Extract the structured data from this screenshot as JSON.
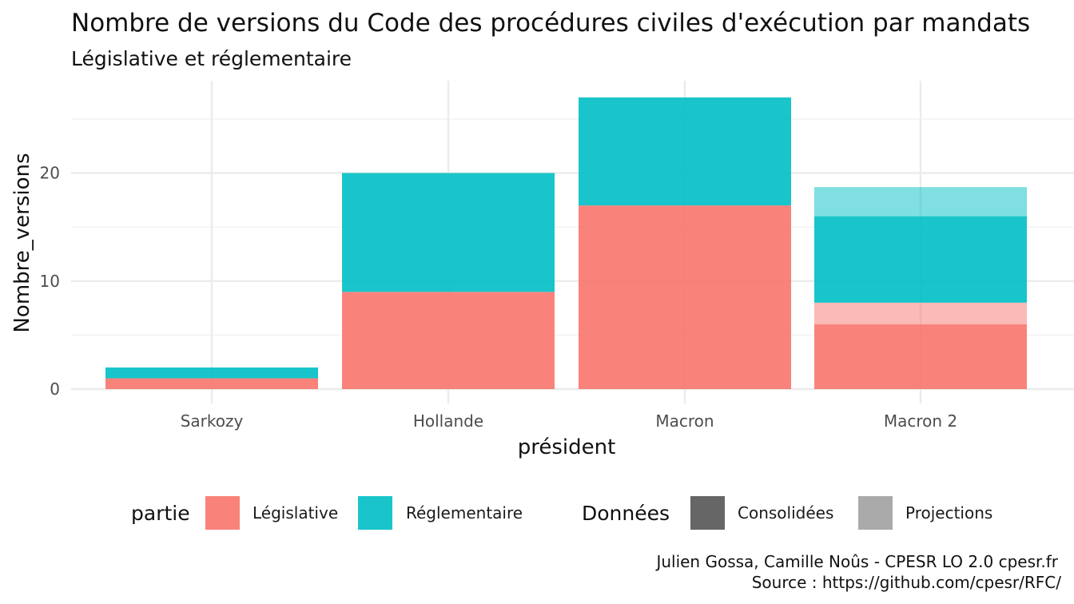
{
  "chart_data": {
    "type": "bar",
    "stacked": true,
    "title": "Nombre de versions du Code des procédures civiles d'exécution par mandats",
    "subtitle": "Législative et réglementaire",
    "xlabel": "président",
    "ylabel": "Nombre_versions",
    "categories": [
      "Sarkozy",
      "Hollande",
      "Macron",
      "Macron 2"
    ],
    "ylim": [
      0,
      28
    ],
    "yticks": [
      0,
      10,
      20
    ],
    "grid": true,
    "legend_position": "bottom",
    "segments": [
      {
        "category": "Sarkozy",
        "partie": "Législative",
        "donnees": "Consolidées",
        "value": 1
      },
      {
        "category": "Sarkozy",
        "partie": "Réglementaire",
        "donnees": "Consolidées",
        "value": 1
      },
      {
        "category": "Hollande",
        "partie": "Législative",
        "donnees": "Consolidées",
        "value": 9
      },
      {
        "category": "Hollande",
        "partie": "Réglementaire",
        "donnees": "Consolidées",
        "value": 11
      },
      {
        "category": "Macron",
        "partie": "Législative",
        "donnees": "Consolidées",
        "value": 17
      },
      {
        "category": "Macron",
        "partie": "Réglementaire",
        "donnees": "Consolidées",
        "value": 10
      },
      {
        "category": "Macron 2",
        "partie": "Législative",
        "donnees": "Consolidées",
        "value": 6
      },
      {
        "category": "Macron 2",
        "partie": "Législative",
        "donnees": "Projections",
        "value": 2
      },
      {
        "category": "Macron 2",
        "partie": "Réglementaire",
        "donnees": "Consolidées",
        "value": 8
      },
      {
        "category": "Macron 2",
        "partie": "Réglementaire",
        "donnees": "Projections",
        "value": 2.7
      }
    ],
    "colors": {
      "Législative": "#F8766D",
      "Réglementaire": "#00BFC4"
    },
    "opacity": {
      "Consolidées": 0.9,
      "Projections": 0.5
    },
    "legend": {
      "partie": {
        "title": "partie",
        "items": [
          {
            "label": "Législative",
            "color": "#F8766D"
          },
          {
            "label": "Réglementaire",
            "color": "#00BFC4"
          }
        ]
      },
      "donnees": {
        "title": "Données",
        "items": [
          {
            "label": "Consolidées",
            "color": "#666666"
          },
          {
            "label": "Projections",
            "color": "#aaaaaa"
          }
        ]
      }
    },
    "caption": [
      "Julien Gossa, Camille Noûs - CPESR LO 2.0 cpesr.fr",
      "Source : https://github.com/cpesr/RFC/"
    ]
  }
}
